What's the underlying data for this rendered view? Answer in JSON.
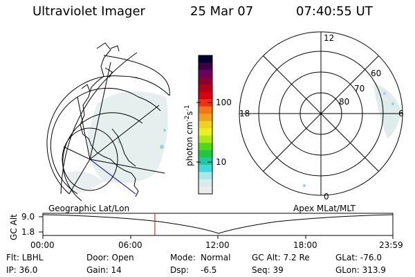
{
  "header": {
    "title": "Ultraviolet Imager",
    "date": "25 Mar 07",
    "time": "07:40:55 UT"
  },
  "colorbar": {
    "label": "photon cm-2s-1",
    "label_main": "photon cm",
    "label_sup1": "-2",
    "label_mid": "s",
    "label_sup2": "-1",
    "ticks": [
      "100",
      "10"
    ],
    "colors": [
      "#000030",
      "#3a0048",
      "#6a0060",
      "#8a0030",
      "#b00018",
      "#d80010",
      "#f03010",
      "#f07818",
      "#f0a020",
      "#f0d020",
      "#e8f020",
      "#a8e818",
      "#50d818",
      "#20c840",
      "#20c8a0",
      "#40d8d8",
      "#a8e8e8",
      "#d8ecec",
      "#ececec"
    ]
  },
  "left_panel": {
    "label": "Geographic Lat/Lon"
  },
  "right_panel": {
    "label": "Apex MLat/MLT",
    "mlt_labels": {
      "top": "12",
      "left": "18",
      "right": "6",
      "bottom": "0"
    },
    "lat_labels": [
      "60",
      "70",
      "80"
    ]
  },
  "timeline": {
    "axis_label": "GC Alt",
    "y_ticks": [
      "9.0",
      "1.8"
    ],
    "x_ticks": [
      "00:00",
      "06:00",
      "12:00",
      "18:00",
      "23:59"
    ],
    "current_hour": 7.68
  },
  "info": {
    "flt": "Flt: LBHL",
    "ip": "IP: 36.0",
    "door": "Door: Open",
    "gain": "Gain: 14",
    "mode_label": "Mode:",
    "mode_value": "Normal",
    "dsp_label": "Dsp:",
    "dsp_value": "-6.5",
    "gc_alt": "GC Alt: 7.2 Re",
    "seq": "Seq: 39",
    "glat": "GLat: -76.0",
    "glon": "GLon: 313.9"
  },
  "colors": {
    "line": "#000000",
    "marker": "#e00000",
    "coast_blue": "#2020c0"
  }
}
